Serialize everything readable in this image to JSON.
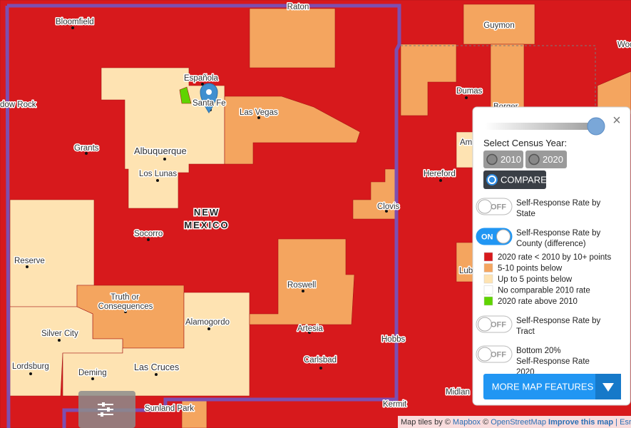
{
  "map": {
    "places": [
      "Raton",
      "Guymon",
      "Woo",
      "Bloomfield",
      "Española",
      "Santa Fe",
      "dow Rock",
      "Dumas",
      "Borger",
      "Las Vegas",
      "Grants",
      "Albuquerque",
      "Los Lunas",
      "Am",
      "Hereford",
      "Clovis",
      "Socorro",
      "Reserve",
      "Lubb",
      "Roswell",
      "Truth or",
      "Consequences",
      "Silver City",
      "Alamogordo",
      "Artesia",
      "Hobbs",
      "Lordsburg",
      "Deming",
      "Las Cruces",
      "Carlsbad",
      "Sunland Park",
      "Midlan",
      "Kermit"
    ],
    "state_label": [
      "NEW",
      "MEXICO"
    ]
  },
  "panel": {
    "close": "×",
    "year_title": "Select Census Year:",
    "years": [
      "2010",
      "2020"
    ],
    "compare": "COMPARE",
    "layers": [
      {
        "toggle": "OFF",
        "label": "Self-Response Rate by State"
      },
      {
        "toggle": "ON",
        "label": "Self-Response Rate by County (difference)"
      },
      {
        "toggle": "OFF",
        "label": "Self-Response Rate by Tract"
      },
      {
        "toggle": "OFF",
        "label": "Bottom 20% Self-Response Rate 2020"
      }
    ],
    "legend": [
      {
        "label": "2020 rate < 2010 by 10+ points",
        "color": "#d7191c"
      },
      {
        "label": "5-10 points below",
        "color": "#f4a55f"
      },
      {
        "label": "Up to 5 points below",
        "color": "#fee3b2"
      },
      {
        "label": "No comparable 2010 rate",
        "color": "#ffffff"
      },
      {
        "label": "2020 rate above 2010",
        "color": "#5fd400"
      }
    ],
    "more_button": "MORE MAP FEATURES"
  },
  "attribution": {
    "prefix": "Map tiles by ©",
    "mapbox": "Mapbox",
    "sep": "©",
    "osm": "OpenStreetMap",
    "improve": "Improve this map",
    "esri": "| Esri"
  }
}
